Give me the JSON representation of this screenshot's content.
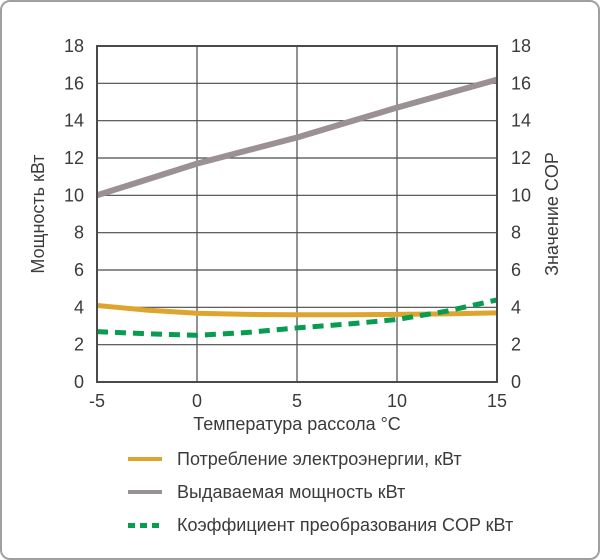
{
  "colors": {
    "frame_border": "#a0a0a0",
    "background": "#ffffff",
    "grid": "#4a4a4a",
    "text": "#3b3b3b"
  },
  "chart_data": {
    "type": "line",
    "title": "",
    "xlabel": "Температура рассола °C",
    "ylabel_left": "Мощность кВт",
    "ylabel_right": "Значение COP",
    "xlim": [
      -5,
      15
    ],
    "ylim": [
      0,
      18
    ],
    "xticks": [
      -5,
      0,
      5,
      10,
      15
    ],
    "yticks": [
      0,
      2,
      4,
      6,
      8,
      10,
      12,
      14,
      16,
      18
    ],
    "grid": true,
    "legend_position": "bottom-left",
    "x": [
      -5,
      -2.5,
      0,
      2.5,
      5,
      7.5,
      10,
      12.5,
      15
    ],
    "series": [
      {
        "name": "Потребление электроэнергии, кВт",
        "color": "#dda52d",
        "style": "solid",
        "values": [
          4.1,
          3.85,
          3.68,
          3.62,
          3.6,
          3.6,
          3.62,
          3.65,
          3.7
        ]
      },
      {
        "name": "Выдаваемая мощность кВт",
        "color": "#9b9093",
        "style": "solid",
        "values": [
          10.0,
          10.85,
          11.7,
          12.4,
          13.1,
          13.9,
          14.7,
          15.45,
          16.2
        ]
      },
      {
        "name": "Коэффициент преобразования COP кВт",
        "color": "#079c4e",
        "style": "dashed",
        "values": [
          2.7,
          2.58,
          2.5,
          2.65,
          2.9,
          3.1,
          3.35,
          3.8,
          4.4
        ]
      }
    ]
  }
}
